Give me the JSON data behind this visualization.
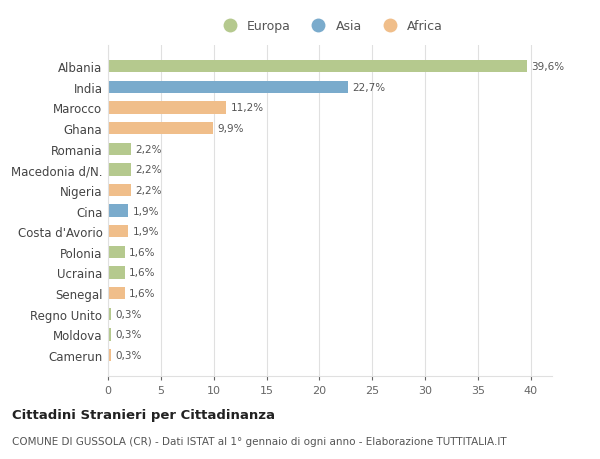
{
  "countries": [
    "Albania",
    "India",
    "Marocco",
    "Ghana",
    "Romania",
    "Macedonia d/N.",
    "Nigeria",
    "Cina",
    "Costa d'Avorio",
    "Polonia",
    "Ucraina",
    "Senegal",
    "Regno Unito",
    "Moldova",
    "Camerun"
  ],
  "values": [
    39.6,
    22.7,
    11.2,
    9.9,
    2.2,
    2.2,
    2.2,
    1.9,
    1.9,
    1.6,
    1.6,
    1.6,
    0.3,
    0.3,
    0.3
  ],
  "labels": [
    "39,6%",
    "22,7%",
    "11,2%",
    "9,9%",
    "2,2%",
    "2,2%",
    "2,2%",
    "1,9%",
    "1,9%",
    "1,6%",
    "1,6%",
    "1,6%",
    "0,3%",
    "0,3%",
    "0,3%"
  ],
  "continents": [
    "Europa",
    "Asia",
    "Africa",
    "Africa",
    "Europa",
    "Europa",
    "Africa",
    "Asia",
    "Africa",
    "Europa",
    "Europa",
    "Africa",
    "Europa",
    "Europa",
    "Africa"
  ],
  "colors": {
    "Europa": "#b5c98e",
    "Asia": "#7aabcc",
    "Africa": "#f0be8a"
  },
  "legend_order": [
    "Europa",
    "Asia",
    "Africa"
  ],
  "title": "Cittadini Stranieri per Cittadinanza",
  "subtitle": "COMUNE DI GUSSOLA (CR) - Dati ISTAT al 1° gennaio di ogni anno - Elaborazione TUTTITALIA.IT",
  "xlim": [
    0,
    42
  ],
  "xticks": [
    0,
    5,
    10,
    15,
    20,
    25,
    30,
    35,
    40
  ],
  "background_color": "#ffffff",
  "grid_color": "#e0e0e0"
}
